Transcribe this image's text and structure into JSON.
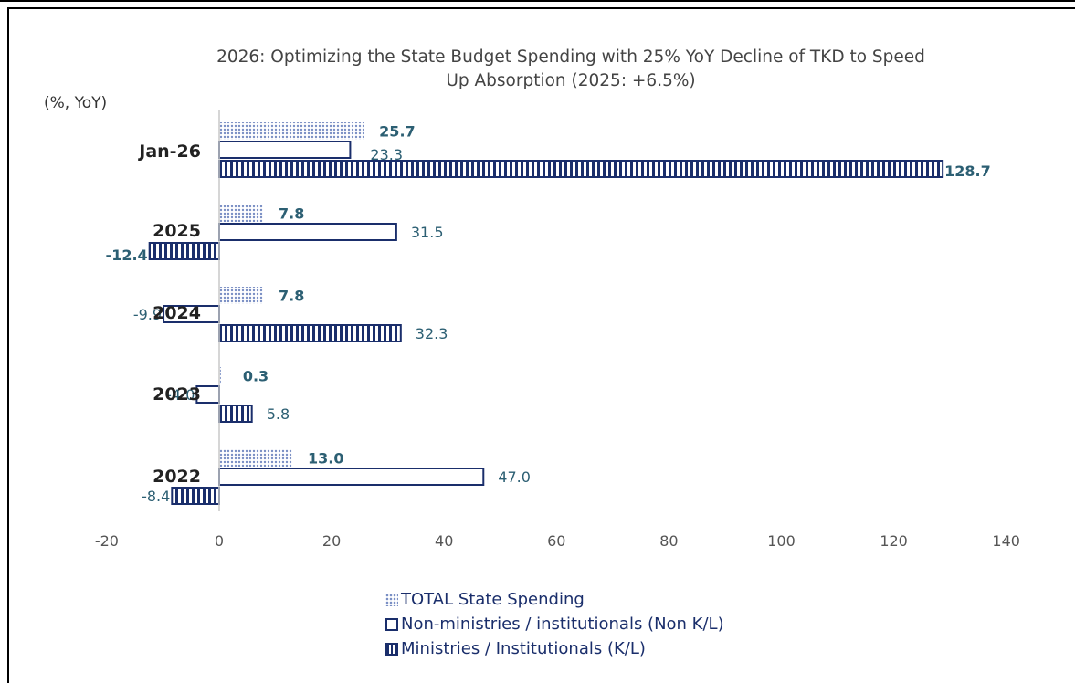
{
  "chart_data": {
    "type": "bar",
    "orientation": "horizontal",
    "title": "2026: Optimizing the State Budget Spending with 25% YoY Decline of TKD to Speed Up Absorption (2025: +6.5%)",
    "title_lines": [
      "2026: Optimizing the State Budget Spending with 25% YoY Decline of TKD to Speed",
      "Up Absorption (2025: +6.5%)"
    ],
    "unit_label": "(%, YoY)",
    "categories": [
      "Jan-26",
      "2025",
      "2024",
      "2023",
      "2022"
    ],
    "series": [
      {
        "name": "TOTAL State Spending",
        "values": [
          25.7,
          7.8,
          7.8,
          0.3,
          13.0
        ],
        "labels": [
          "25.7",
          "7.8",
          "7.8",
          "0.3",
          "13.0"
        ]
      },
      {
        "name": "Non-ministries / institutionals (Non K/L)",
        "values": [
          23.3,
          31.5,
          -9.9,
          -4.0,
          47.0
        ],
        "labels": [
          "23.3",
          "31.5",
          "-9.9",
          "-4.0",
          "47.0"
        ]
      },
      {
        "name": "Ministries / Institutionals (K/L)",
        "values": [
          128.7,
          -12.4,
          32.3,
          5.8,
          -8.4
        ],
        "labels": [
          "128.7",
          "-12.4",
          "32.3",
          "5.8",
          "-8.4"
        ]
      }
    ],
    "x_ticks": [
      "-20",
      "0",
      "20",
      "40",
      "60",
      "80",
      "100",
      "120",
      "140"
    ],
    "xlim": [
      -20,
      140
    ],
    "grid": false,
    "legend_position": "bottom",
    "colors": {
      "navy": "#1a2e6b",
      "dots": "#7a8fc4",
      "label": "#2c5f73",
      "category": "#222222"
    }
  }
}
